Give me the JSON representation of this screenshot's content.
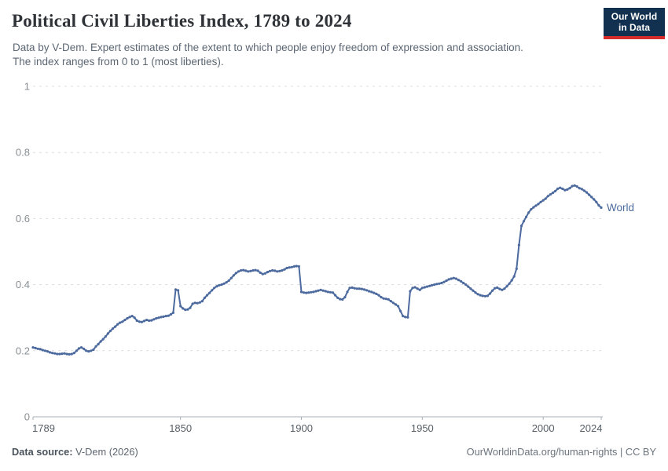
{
  "header": {
    "title": "Political Civil Liberties Index, 1789 to 2024",
    "subtitle_line1": "Data by V-Dem. Expert estimates of the extent to which people enjoy freedom of expression and association.",
    "subtitle_line2": "The index ranges from 0 to 1 (most liberties).",
    "logo": {
      "line1": "Our World",
      "line2": "in Data"
    }
  },
  "footer": {
    "source_label": "Data source:",
    "source_value": " V-Dem (2026)",
    "credit": "OurWorldinData.org/human-rights | CC BY"
  },
  "chart_data": {
    "type": "line",
    "title": "Political Civil Liberties Index, 1789 to 2024",
    "xlabel": "",
    "ylabel": "",
    "xlim": [
      1789,
      2024
    ],
    "ylim": [
      0,
      1
    ],
    "grid": "horizontal-dashed",
    "legend_position": "end-of-line-label",
    "xticks": [
      1789,
      1850,
      1900,
      1950,
      2000,
      2024
    ],
    "yticks": [
      0,
      0.2,
      0.4,
      0.6,
      0.8,
      1
    ],
    "ytick_labels": [
      "0",
      "0.2",
      "0.4",
      "0.6",
      "0.8",
      "1"
    ],
    "colors": {
      "line": "#4c6a9e",
      "grid": "#d9dde1",
      "axis": "#a9b1b8",
      "ytick_text": "#888f94",
      "xtick_text": "#565e66"
    },
    "series": [
      {
        "name": "World",
        "start_year": 1789,
        "end_year": 2024,
        "values": [
          0.21,
          0.208,
          0.206,
          0.205,
          0.202,
          0.2,
          0.198,
          0.195,
          0.193,
          0.192,
          0.19,
          0.19,
          0.191,
          0.192,
          0.19,
          0.189,
          0.19,
          0.193,
          0.2,
          0.207,
          0.21,
          0.206,
          0.2,
          0.198,
          0.2,
          0.203,
          0.213,
          0.22,
          0.228,
          0.235,
          0.243,
          0.252,
          0.26,
          0.267,
          0.273,
          0.28,
          0.285,
          0.288,
          0.293,
          0.298,
          0.302,
          0.305,
          0.3,
          0.291,
          0.288,
          0.287,
          0.29,
          0.293,
          0.291,
          0.292,
          0.295,
          0.298,
          0.3,
          0.302,
          0.303,
          0.305,
          0.306,
          0.31,
          0.315,
          0.385,
          0.383,
          0.335,
          0.328,
          0.324,
          0.325,
          0.33,
          0.342,
          0.345,
          0.344,
          0.346,
          0.35,
          0.36,
          0.368,
          0.375,
          0.383,
          0.39,
          0.395,
          0.398,
          0.4,
          0.403,
          0.407,
          0.412,
          0.42,
          0.428,
          0.435,
          0.44,
          0.443,
          0.444,
          0.442,
          0.44,
          0.441,
          0.443,
          0.444,
          0.442,
          0.436,
          0.432,
          0.434,
          0.438,
          0.441,
          0.443,
          0.442,
          0.44,
          0.441,
          0.443,
          0.446,
          0.45,
          0.452,
          0.453,
          0.455,
          0.456,
          0.455,
          0.378,
          0.376,
          0.375,
          0.376,
          0.377,
          0.378,
          0.38,
          0.382,
          0.384,
          0.382,
          0.38,
          0.378,
          0.377,
          0.376,
          0.368,
          0.36,
          0.356,
          0.355,
          0.362,
          0.378,
          0.39,
          0.391,
          0.389,
          0.388,
          0.388,
          0.387,
          0.385,
          0.383,
          0.38,
          0.378,
          0.375,
          0.372,
          0.368,
          0.362,
          0.358,
          0.357,
          0.355,
          0.35,
          0.345,
          0.34,
          0.335,
          0.32,
          0.305,
          0.302,
          0.301,
          0.38,
          0.39,
          0.392,
          0.388,
          0.384,
          0.39,
          0.392,
          0.394,
          0.396,
          0.398,
          0.4,
          0.402,
          0.403,
          0.405,
          0.408,
          0.412,
          0.416,
          0.418,
          0.42,
          0.418,
          0.414,
          0.41,
          0.405,
          0.4,
          0.394,
          0.388,
          0.382,
          0.376,
          0.371,
          0.368,
          0.366,
          0.365,
          0.366,
          0.373,
          0.382,
          0.389,
          0.391,
          0.387,
          0.384,
          0.388,
          0.395,
          0.403,
          0.413,
          0.425,
          0.448,
          0.52,
          0.578,
          0.592,
          0.605,
          0.618,
          0.628,
          0.634,
          0.639,
          0.644,
          0.65,
          0.655,
          0.66,
          0.668,
          0.673,
          0.678,
          0.683,
          0.69,
          0.693,
          0.69,
          0.686,
          0.688,
          0.692,
          0.698,
          0.7,
          0.697,
          0.692,
          0.689,
          0.684,
          0.679,
          0.672,
          0.665,
          0.658,
          0.65,
          0.64,
          0.633
        ]
      }
    ]
  }
}
